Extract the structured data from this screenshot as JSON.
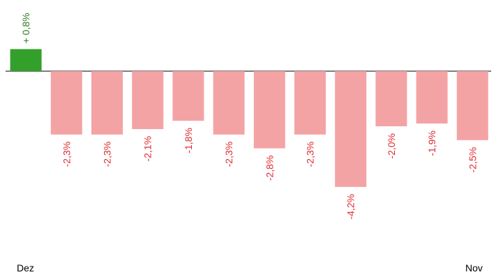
{
  "chart_data": {
    "type": "bar",
    "categories": [
      "Dez",
      "",
      "",
      "",
      "",
      "",
      "",
      "",
      "",
      "",
      "",
      "Nov"
    ],
    "values": [
      0.8,
      -2.3,
      -2.3,
      -2.1,
      -1.8,
      -2.3,
      -2.8,
      -2.3,
      -4.2,
      -2.0,
      -1.9,
      -2.5
    ],
    "data_labels": [
      "+ 0,8%",
      "-2,3%",
      "-2,3%",
      "-2,1%",
      "-1,8%",
      "-2,3%",
      "-2,8%",
      "-2,3%",
      "-4,2%",
      "-2,0%",
      "-1,9%",
      "-2,5%"
    ],
    "x_axis_labels": {
      "first": "Dez",
      "last": "Nov"
    },
    "title": "",
    "xlabel": "",
    "ylabel": "",
    "grid": false,
    "legend": "none",
    "colors": {
      "positive_bar": "#33a02c",
      "negative_bar": "#f4a3a5",
      "positive_label": "#2e7d1e",
      "negative_label": "#e0292f",
      "zero_line": "#7f7f7f"
    }
  }
}
